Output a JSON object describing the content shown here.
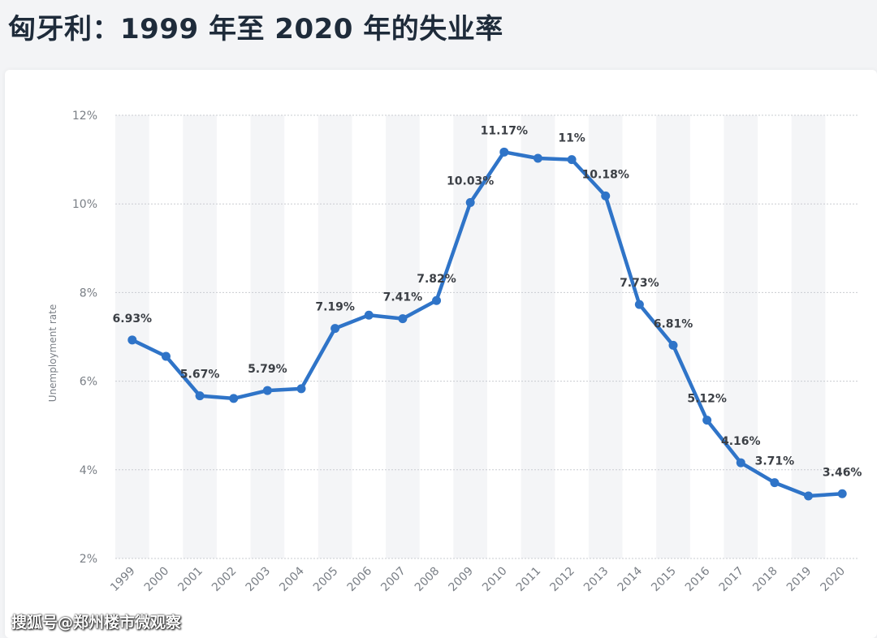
{
  "page": {
    "title": "匈牙利：1999 年至 2020 年的失业率",
    "watermark": "搜狐号@郑州楼市微观察"
  },
  "chart_data": {
    "type": "line",
    "title": "",
    "xlabel": "",
    "ylabel": "Unemployment rate",
    "categories": [
      "1999",
      "2000",
      "2001",
      "2002",
      "2003",
      "2004",
      "2005",
      "2006",
      "2007",
      "2008",
      "2009",
      "2010",
      "2011",
      "2012",
      "2013",
      "2014",
      "2015",
      "2016",
      "2017",
      "2018",
      "2019",
      "2020"
    ],
    "series": [
      {
        "values": [
          6.93,
          6.56,
          5.67,
          5.61,
          5.79,
          5.83,
          7.19,
          7.49,
          7.41,
          7.82,
          10.03,
          11.17,
          11.03,
          11.0,
          10.18,
          7.73,
          6.81,
          5.12,
          4.16,
          3.71,
          3.41,
          3.46
        ],
        "labels": [
          "6.93%",
          "",
          "5.67%",
          "",
          "5.79%",
          "",
          "7.19%",
          "",
          "7.41%",
          "7.82%",
          "10.03%",
          "11.17%",
          "",
          "11%",
          "10.18%",
          "7.73%",
          "6.81%",
          "5.12%",
          "4.16%",
          "3.71%",
          "",
          "3.46%"
        ]
      }
    ],
    "ylim": [
      2,
      12
    ],
    "yticks": [
      2,
      4,
      6,
      8,
      10,
      12
    ],
    "ytick_labels": [
      "2%",
      "4%",
      "6%",
      "8%",
      "10%",
      "12%"
    ],
    "grid": true,
    "colors": {
      "line": "#2f74c8",
      "band": "#f4f5f7",
      "grid": "#c9ccd1"
    }
  }
}
